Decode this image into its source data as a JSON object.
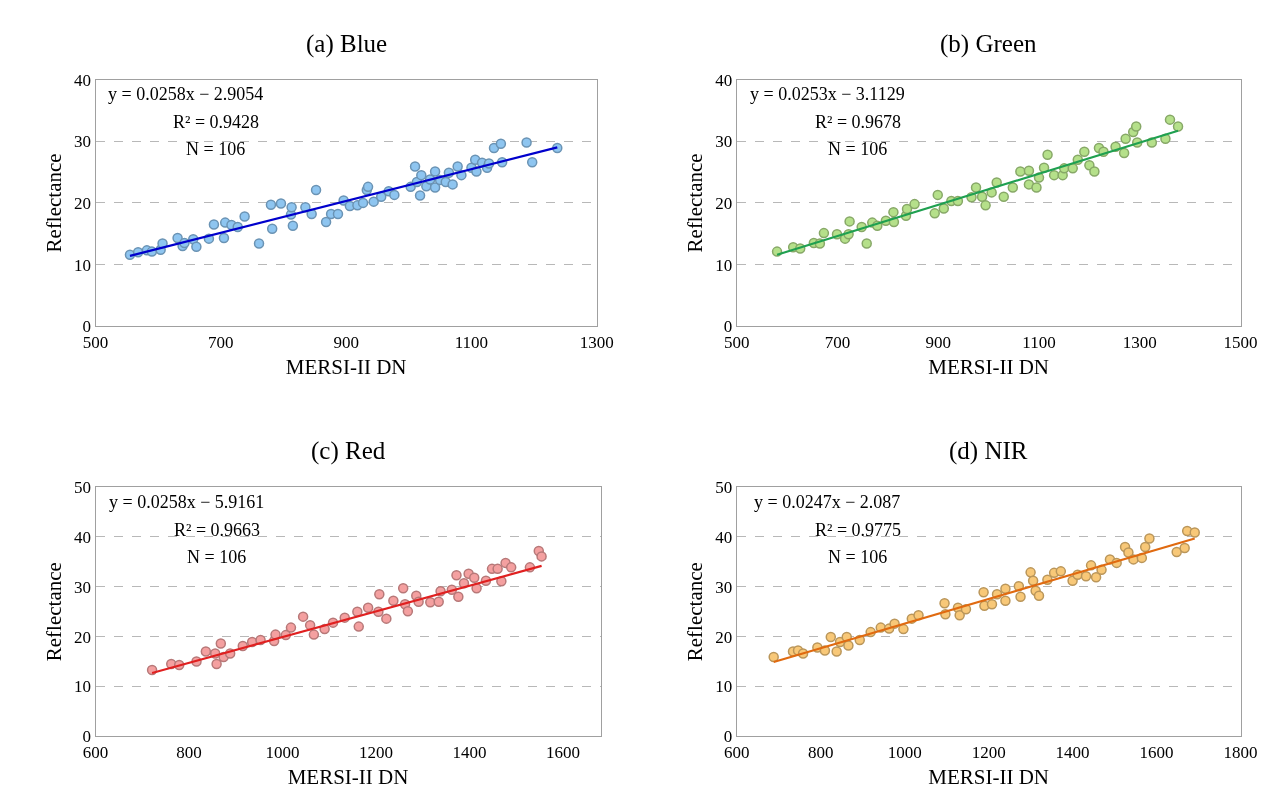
{
  "chart_data": [
    {
      "type": "scatter",
      "title": "(a) Blue",
      "xlabel": "MERSI-II DN",
      "ylabel": "Reflectance",
      "xlim": [
        500,
        1300
      ],
      "xticks": [
        500,
        700,
        900,
        1100,
        1300
      ],
      "ylim": [
        0,
        40
      ],
      "yticks": [
        0,
        10,
        20,
        30,
        40
      ],
      "grid": "y",
      "line_style": "solid",
      "annotations": [
        "y = 0.0258x − 2.9054",
        "R² = 0.9428",
        "N = 106"
      ],
      "series": [
        {
          "marker": "circle",
          "color": "#8ec5f0",
          "x": [
            555,
            568,
            582,
            590,
            604,
            607,
            631,
            639,
            642,
            656,
            661,
            681,
            689,
            705,
            707,
            717,
            727,
            738,
            761,
            780,
            782,
            796,
            812,
            813,
            815,
            835,
            845,
            852,
            868,
            876,
            887,
            896,
            906,
            918,
            927,
            933,
            935,
            944,
            956,
            968,
            977,
            1003,
            1010,
            1013,
            1018,
            1020,
            1028,
            1034,
            1042,
            1042,
            1050,
            1059,
            1064,
            1070,
            1078,
            1084,
            1100,
            1106,
            1108,
            1117,
            1125,
            1128,
            1136,
            1147,
            1149,
            1188,
            1197,
            1237
          ],
          "values": [
            11.6,
            12.0,
            12.3,
            12.1,
            12.4,
            13.4,
            14.3,
            13.0,
            13.5,
            14.1,
            12.9,
            14.2,
            16.5,
            14.3,
            16.8,
            16.4,
            16.1,
            17.8,
            13.4,
            19.7,
            15.8,
            19.9,
            18.1,
            19.3,
            16.3,
            19.3,
            18.2,
            22.1,
            16.9,
            18.2,
            18.2,
            20.4,
            19.5,
            19.6,
            20.0,
            22.1,
            22.6,
            20.2,
            21.0,
            21.9,
            21.3,
            22.6,
            25.9,
            23.4,
            21.2,
            24.5,
            22.7,
            23.8,
            25.1,
            22.5,
            23.7,
            23.4,
            24.9,
            23.0,
            25.9,
            24.5,
            25.7,
            27.0,
            25.1,
            26.5,
            25.7,
            26.4,
            28.9,
            29.6,
            26.6,
            29.8,
            26.6,
            28.9
          ]
        },
        {
          "type": "line",
          "color": "#0000cc",
          "x": [
            555,
            1237
          ],
          "values": [
            11.4,
            29.0
          ]
        }
      ]
    },
    {
      "type": "scatter",
      "title": "(b) Green",
      "xlabel": "MERSI-II DN",
      "ylabel": "Reflectance",
      "xlim": [
        500,
        1500
      ],
      "xticks": [
        500,
        700,
        900,
        1100,
        1300,
        1500
      ],
      "ylim": [
        0,
        40
      ],
      "yticks": [
        0,
        10,
        20,
        30,
        40
      ],
      "grid": "y",
      "line_style": "solid",
      "annotations": [
        "y = 0.0253x − 3.1129",
        "R² = 0.9678",
        "N = 106"
      ],
      "series": [
        {
          "marker": "circle",
          "color": "#b5e08a",
          "x": [
            580,
            612,
            626,
            653,
            665,
            673,
            699,
            715,
            722,
            724,
            748,
            758,
            769,
            779,
            796,
            811,
            812,
            836,
            838,
            853,
            893,
            899,
            911,
            926,
            939,
            966,
            975,
            987,
            994,
            1006,
            1016,
            1030,
            1048,
            1063,
            1080,
            1080,
            1095,
            1100,
            1110,
            1117,
            1130,
            1147,
            1150,
            1167,
            1177,
            1190,
            1200,
            1210,
            1219,
            1228,
            1252,
            1269,
            1272,
            1287,
            1293,
            1295,
            1324,
            1351,
            1360,
            1376
          ],
          "values": [
            12.1,
            12.8,
            12.6,
            13.5,
            13.4,
            15.1,
            14.9,
            14.2,
            14.9,
            17.0,
            16.1,
            13.4,
            16.8,
            16.3,
            17.1,
            18.5,
            16.9,
            17.9,
            19.0,
            19.8,
            18.3,
            21.3,
            19.1,
            20.3,
            20.3,
            20.9,
            22.5,
            21.0,
            19.6,
            21.7,
            23.3,
            21.0,
            22.5,
            25.1,
            25.2,
            23.0,
            22.5,
            24.1,
            25.7,
            27.8,
            24.5,
            24.5,
            25.6,
            25.6,
            27.0,
            28.3,
            26.1,
            25.1,
            28.9,
            28.3,
            29.1,
            28.1,
            30.4,
            31.5,
            32.4,
            29.8,
            29.8,
            30.4,
            33.5,
            32.4
          ]
        },
        {
          "type": "line",
          "color": "#1fa050",
          "x": [
            580,
            1376
          ],
          "values": [
            11.6,
            31.7
          ]
        }
      ]
    },
    {
      "type": "scatter",
      "title": "(c) Red",
      "xlabel": "MERSI-II DN",
      "ylabel": "Reflectance",
      "xlim": [
        600,
        1680
      ],
      "xticks": [
        600,
        800,
        1000,
        1200,
        1400,
        1600
      ],
      "ylim": [
        0,
        50
      ],
      "yticks": [
        0,
        10,
        20,
        30,
        40,
        50
      ],
      "grid": "y",
      "line_style": "solid",
      "annotations": [
        "y = 0.0258x − 5.9161",
        "R² = 0.9663",
        "N = 106"
      ],
      "series": [
        {
          "marker": "circle",
          "color": "#f4a0a0",
          "x": [
            721,
            762,
            779,
            816,
            836,
            856,
            859,
            868,
            874,
            888,
            915,
            935,
            953,
            982,
            985,
            1007,
            1018,
            1044,
            1059,
            1067,
            1090,
            1108,
            1133,
            1160,
            1163,
            1183,
            1205,
            1207,
            1222,
            1237,
            1258,
            1262,
            1268,
            1286,
            1291,
            1316,
            1334,
            1338,
            1362,
            1372,
            1376,
            1388,
            1398,
            1410,
            1415,
            1435,
            1448,
            1460,
            1468,
            1477,
            1489,
            1529,
            1548,
            1554
          ],
          "values": [
            13.3,
            14.5,
            14.3,
            15.0,
            17.0,
            16.6,
            14.5,
            18.6,
            15.9,
            16.6,
            18.1,
            18.9,
            19.3,
            19.1,
            20.4,
            20.3,
            21.8,
            24.0,
            22.3,
            20.4,
            21.5,
            22.8,
            23.8,
            25.0,
            22.0,
            25.8,
            25.0,
            28.5,
            23.6,
            27.2,
            29.7,
            26.5,
            25.1,
            28.2,
            27.0,
            26.9,
            27.0,
            29.1,
            29.4,
            32.3,
            28.0,
            30.7,
            32.6,
            31.8,
            29.7,
            31.2,
            33.6,
            33.6,
            31.1,
            34.8,
            33.9,
            33.9,
            37.2,
            36.1
          ]
        },
        {
          "type": "line",
          "color": "#e02020",
          "x": [
            721,
            1554
          ],
          "values": [
            12.7,
            34.2
          ]
        }
      ]
    },
    {
      "type": "scatter",
      "title": "(d) NIR",
      "xlabel": "MERSI-II DN",
      "ylabel": "Reflectance",
      "xlim": [
        600,
        1800
      ],
      "xticks": [
        600,
        800,
        1000,
        1200,
        1400,
        1600,
        1800
      ],
      "ylim": [
        0,
        50
      ],
      "yticks": [
        0,
        10,
        20,
        30,
        40,
        50
      ],
      "grid": "y",
      "line_style": "solid",
      "annotations": [
        "y = 0.0247x − 2.087",
        "R² = 0.9775",
        "N = 106"
      ],
      "series": [
        {
          "marker": "circle",
          "color": "#f8c878",
          "x": [
            688,
            734,
            746,
            758,
            792,
            810,
            824,
            838,
            846,
            862,
            866,
            893,
            919,
            943,
            963,
            976,
            997,
            1017,
            1033,
            1095,
            1097,
            1127,
            1131,
            1146,
            1188,
            1190,
            1208,
            1220,
            1240,
            1240,
            1272,
            1276,
            1300,
            1306,
            1312,
            1320,
            1340,
            1356,
            1372,
            1400,
            1412,
            1432,
            1444,
            1456,
            1469,
            1489,
            1505,
            1525,
            1533,
            1545,
            1565,
            1573,
            1583,
            1648,
            1667,
            1673,
            1691
          ],
          "values": [
            15.9,
            17.0,
            17.2,
            16.6,
            17.8,
            17.2,
            19.9,
            17.0,
            18.9,
            19.9,
            18.2,
            19.3,
            20.9,
            21.8,
            21.6,
            22.6,
            21.5,
            23.6,
            24.3,
            26.7,
            24.5,
            25.8,
            24.3,
            25.5,
            28.9,
            26.2,
            26.5,
            28.5,
            29.6,
            27.2,
            30.1,
            28.0,
            32.9,
            31.2,
            29.2,
            28.2,
            31.4,
            32.8,
            33.1,
            31.2,
            32.4,
            32.1,
            34.3,
            31.9,
            33.4,
            35.5,
            34.8,
            38.0,
            36.9,
            35.5,
            35.8,
            38.0,
            39.7,
            37.0,
            37.8,
            41.2,
            40.9
          ]
        },
        {
          "type": "line",
          "color": "#e06a10",
          "x": [
            688,
            1691
          ],
          "values": [
            14.9,
            39.7
          ]
        }
      ]
    }
  ]
}
